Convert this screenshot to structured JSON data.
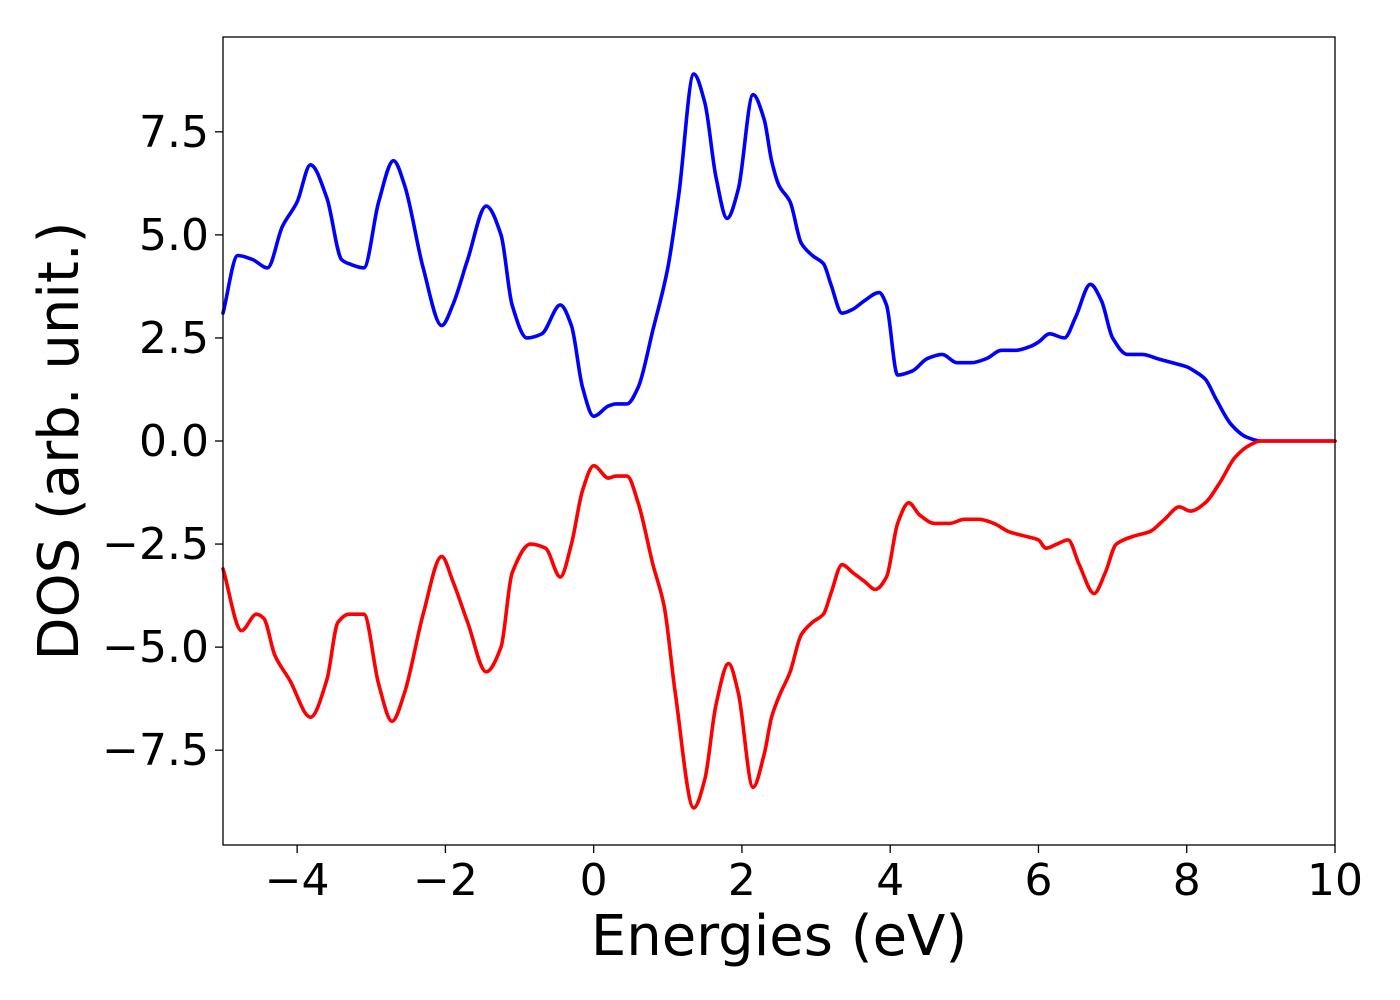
{
  "chart_data": {
    "type": "line",
    "title": "",
    "xlabel": "Energies (eV)",
    "ylabel": "DOS (arb. unit.)",
    "xlim": [
      -5,
      10
    ],
    "ylim": [
      -9.8,
      9.8
    ],
    "grid": false,
    "legend": "none",
    "x_ticks": [
      {
        "value": -4,
        "label": "−4"
      },
      {
        "value": -2,
        "label": "−2"
      },
      {
        "value": 0,
        "label": "0"
      },
      {
        "value": 2,
        "label": "2"
      },
      {
        "value": 4,
        "label": "4"
      },
      {
        "value": 6,
        "label": "6"
      },
      {
        "value": 8,
        "label": "8"
      },
      {
        "value": 10,
        "label": "10"
      }
    ],
    "y_ticks": [
      {
        "value": 7.5,
        "label": "7.5"
      },
      {
        "value": 5.0,
        "label": "5.0"
      },
      {
        "value": 2.5,
        "label": "2.5"
      },
      {
        "value": 0.0,
        "label": "0.0"
      },
      {
        "value": -2.5,
        "label": "−2.5"
      },
      {
        "value": -5.0,
        "label": "−5.0"
      },
      {
        "value": -7.5,
        "label": "−7.5"
      }
    ],
    "series": [
      {
        "color": "#0000ff",
        "x": [
          -5.0,
          -4.8,
          -4.6,
          -4.4,
          -4.2,
          -4.0,
          -3.82,
          -3.6,
          -3.4,
          -3.3,
          -3.1,
          -2.9,
          -2.7,
          -2.55,
          -2.3,
          -2.05,
          -1.9,
          -1.7,
          -1.45,
          -1.25,
          -1.1,
          -0.9,
          -0.7,
          -0.45,
          -0.3,
          -0.15,
          0.0,
          0.2,
          0.3,
          0.45,
          0.6,
          0.8,
          1.0,
          1.15,
          1.35,
          1.5,
          1.65,
          1.8,
          1.95,
          2.15,
          2.3,
          2.4,
          2.5,
          2.65,
          2.8,
          2.95,
          3.1,
          3.2,
          3.35,
          3.5,
          3.65,
          3.85,
          3.95,
          4.1,
          4.3,
          4.5,
          4.7,
          4.9,
          5.1,
          5.3,
          5.5,
          5.7,
          5.9,
          6.0,
          6.15,
          6.35,
          6.5,
          6.7,
          6.85,
          7.0,
          7.2,
          7.4,
          7.6,
          7.8,
          8.0,
          8.1,
          8.25,
          8.4,
          8.6,
          8.8,
          9.0,
          9.5,
          10.0
        ],
        "y": [
          3.1,
          4.5,
          4.4,
          4.2,
          5.2,
          5.8,
          6.7,
          5.9,
          4.4,
          4.3,
          4.2,
          5.8,
          6.8,
          6.2,
          4.2,
          2.8,
          3.3,
          4.4,
          5.7,
          5.0,
          3.3,
          2.5,
          2.6,
          3.3,
          2.8,
          1.3,
          0.6,
          0.85,
          0.9,
          0.9,
          1.3,
          2.7,
          4.2,
          6.0,
          8.9,
          8.2,
          6.4,
          5.4,
          6.1,
          8.4,
          7.8,
          6.8,
          6.2,
          5.8,
          4.8,
          4.5,
          4.3,
          3.8,
          3.1,
          3.2,
          3.4,
          3.6,
          3.3,
          1.6,
          1.7,
          2.0,
          2.1,
          1.9,
          1.9,
          2.0,
          2.2,
          2.2,
          2.3,
          2.4,
          2.6,
          2.5,
          3.0,
          3.8,
          3.4,
          2.5,
          2.1,
          2.1,
          2.0,
          1.9,
          1.8,
          1.7,
          1.5,
          1.0,
          0.4,
          0.1,
          0.0,
          0.0,
          0.0
        ]
      },
      {
        "color": "#ff0000",
        "x": [
          -5.0,
          -4.75,
          -4.55,
          -4.45,
          -4.3,
          -4.1,
          -3.82,
          -3.6,
          -3.45,
          -3.3,
          -3.1,
          -2.9,
          -2.72,
          -2.55,
          -2.3,
          -2.05,
          -1.9,
          -1.7,
          -1.45,
          -1.25,
          -1.1,
          -0.85,
          -0.65,
          -0.45,
          -0.3,
          -0.15,
          0.0,
          0.2,
          0.3,
          0.45,
          0.6,
          0.8,
          0.95,
          1.1,
          1.35,
          1.5,
          1.65,
          1.82,
          1.95,
          2.15,
          2.3,
          2.4,
          2.5,
          2.65,
          2.8,
          2.95,
          3.1,
          3.2,
          3.35,
          3.5,
          3.65,
          3.8,
          3.95,
          4.1,
          4.25,
          4.4,
          4.6,
          4.8,
          5.0,
          5.2,
          5.4,
          5.6,
          5.8,
          6.0,
          6.1,
          6.25,
          6.4,
          6.55,
          6.75,
          6.9,
          7.05,
          7.3,
          7.5,
          7.7,
          7.9,
          8.05,
          8.25,
          8.45,
          8.65,
          8.85,
          9.0,
          9.5,
          10.0
        ],
        "y": [
          -3.1,
          -4.6,
          -4.2,
          -4.3,
          -5.2,
          -5.8,
          -6.7,
          -5.8,
          -4.4,
          -4.2,
          -4.2,
          -5.9,
          -6.8,
          -6.1,
          -4.2,
          -2.8,
          -3.4,
          -4.4,
          -5.6,
          -5.0,
          -3.2,
          -2.5,
          -2.6,
          -3.3,
          -2.5,
          -1.2,
          -0.6,
          -0.9,
          -0.85,
          -0.85,
          -1.5,
          -3.0,
          -4.0,
          -6.1,
          -8.9,
          -8.2,
          -6.4,
          -5.4,
          -6.1,
          -8.4,
          -7.6,
          -6.7,
          -6.2,
          -5.6,
          -4.7,
          -4.4,
          -4.2,
          -3.7,
          -3.0,
          -3.2,
          -3.4,
          -3.6,
          -3.3,
          -2.0,
          -1.5,
          -1.8,
          -2.0,
          -2.0,
          -1.9,
          -1.9,
          -2.0,
          -2.2,
          -2.3,
          -2.4,
          -2.6,
          -2.5,
          -2.4,
          -3.0,
          -3.7,
          -3.2,
          -2.5,
          -2.3,
          -2.2,
          -1.9,
          -1.6,
          -1.7,
          -1.5,
          -1.0,
          -0.4,
          -0.1,
          0.0,
          0.0,
          0.0
        ]
      }
    ]
  }
}
